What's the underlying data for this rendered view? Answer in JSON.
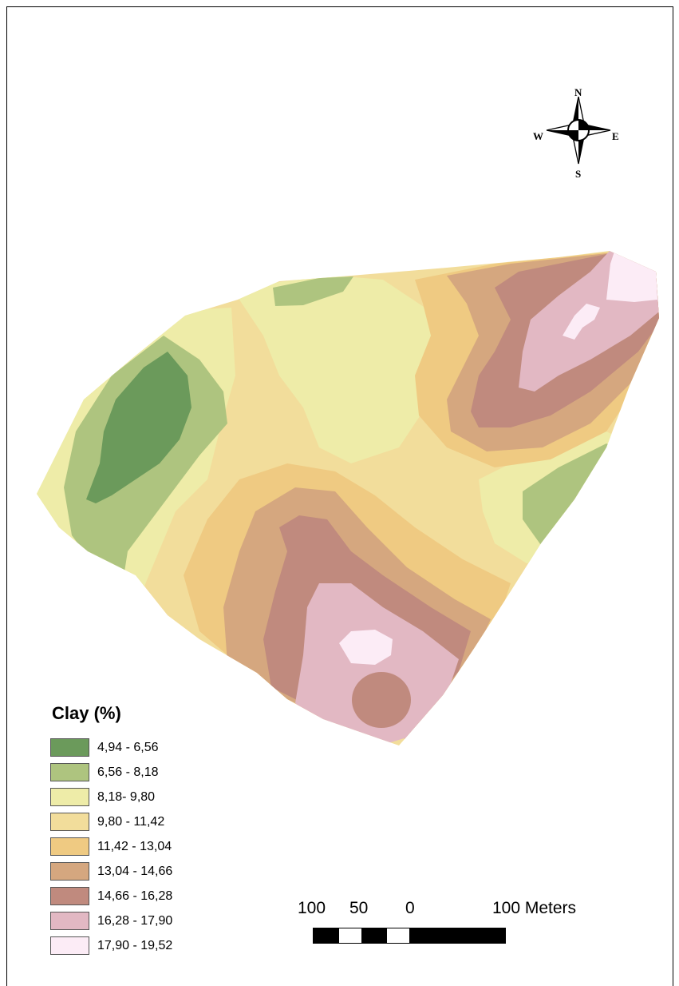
{
  "legend": {
    "title": "Clay (%)",
    "classes": [
      {
        "label": "4,94 - 6,56",
        "color": "#6b9a5b"
      },
      {
        "label": "6,56 - 8,18",
        "color": "#aec47f"
      },
      {
        "label": "8,18- 9,80",
        "color": "#eeeca8"
      },
      {
        "label": "9,80 - 11,42",
        "color": "#f2dd9b"
      },
      {
        "label": "11,42 - 13,04",
        "color": "#efca82"
      },
      {
        "label": "13,04 - 14,66",
        "color": "#d5a77f"
      },
      {
        "label": "14,66 - 16,28",
        "color": "#c08a7e"
      },
      {
        "label": "16,28 - 17,90",
        "color": "#e2b8c3"
      },
      {
        "label": "17,90 - 19,52",
        "color": "#fcecf6"
      }
    ]
  },
  "compass": {
    "n": "N",
    "s": "S",
    "e": "E",
    "w": "W"
  },
  "scale_bar": {
    "labels": [
      "100",
      "50",
      "0",
      "100 Meters"
    ]
  }
}
